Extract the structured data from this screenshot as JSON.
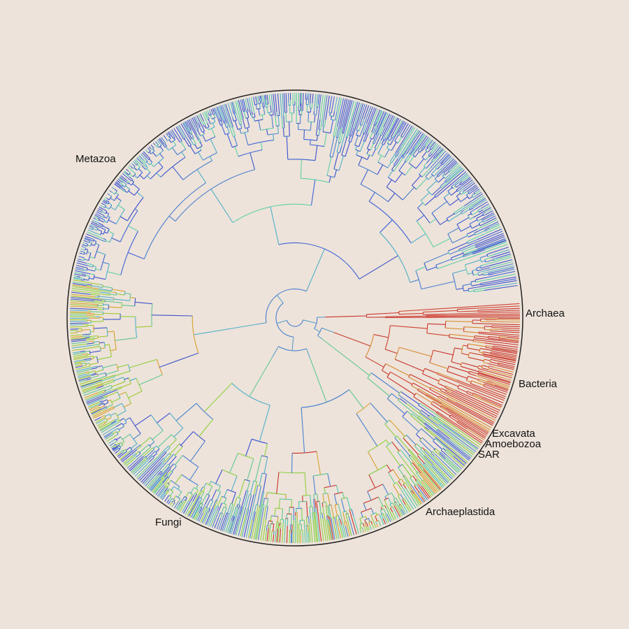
{
  "labels": {
    "metazoa": "Metazoa",
    "archaea": "Archaea",
    "bacteria": "Bacteria",
    "excavata": "Excavata",
    "amoebozoa": "Amoebozoa",
    "sar": "SAR",
    "archaeplastida": "Archaeplastida",
    "fungi": "Fungi"
  }
}
